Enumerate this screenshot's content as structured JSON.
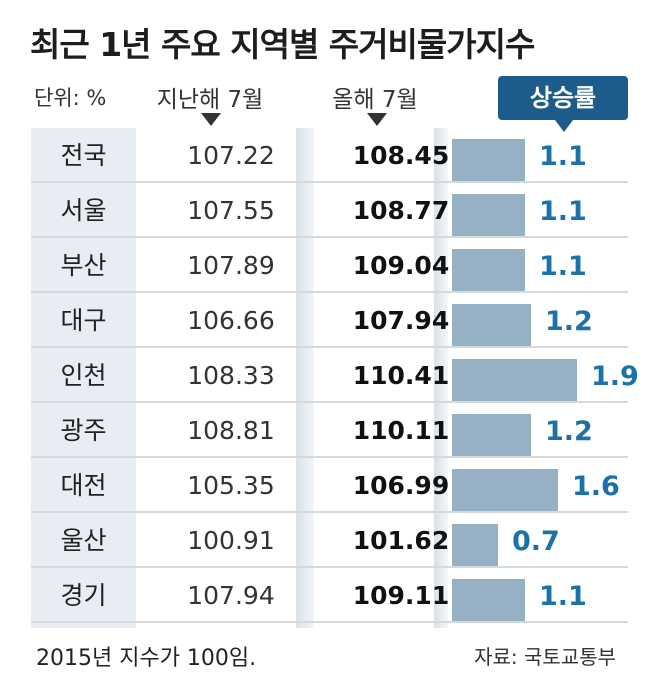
{
  "title": "최근 1년 주요 지역별 주거비물가지수",
  "unit_label": "단위: %",
  "columns": {
    "previous": "지난해 7월",
    "current": "올해 7월",
    "rate": "상승률"
  },
  "footnote": "2015년 지수가 100임.",
  "source": "자료: 국토교통부",
  "colors": {
    "bar": "#95b1c3",
    "rate_text": "#1c72a8",
    "badge": "#1c5c8a",
    "region_bg": "#e7edf3"
  },
  "chart_data": {
    "type": "table",
    "title": "최근 1년 주요 지역별 주거비물가지수",
    "unit": "%",
    "rows": [
      {
        "region": "전국",
        "previous": "107.22",
        "current": "108.45",
        "rate": 1.1,
        "rate_label": "1.1"
      },
      {
        "region": "서울",
        "previous": "107.55",
        "current": "108.77",
        "rate": 1.1,
        "rate_label": "1.1"
      },
      {
        "region": "부산",
        "previous": "107.89",
        "current": "109.04",
        "rate": 1.1,
        "rate_label": "1.1"
      },
      {
        "region": "대구",
        "previous": "106.66",
        "current": "107.94",
        "rate": 1.2,
        "rate_label": "1.2"
      },
      {
        "region": "인천",
        "previous": "108.33",
        "current": "110.41",
        "rate": 1.9,
        "rate_label": "1.9"
      },
      {
        "region": "광주",
        "previous": "108.81",
        "current": "110.11",
        "rate": 1.2,
        "rate_label": "1.2"
      },
      {
        "region": "대전",
        "previous": "105.35",
        "current": "106.99",
        "rate": 1.6,
        "rate_label": "1.6"
      },
      {
        "region": "울산",
        "previous": "100.91",
        "current": "101.62",
        "rate": 0.7,
        "rate_label": "0.7"
      },
      {
        "region": "경기",
        "previous": "107.94",
        "current": "109.11",
        "rate": 1.1,
        "rate_label": "1.1"
      }
    ]
  }
}
